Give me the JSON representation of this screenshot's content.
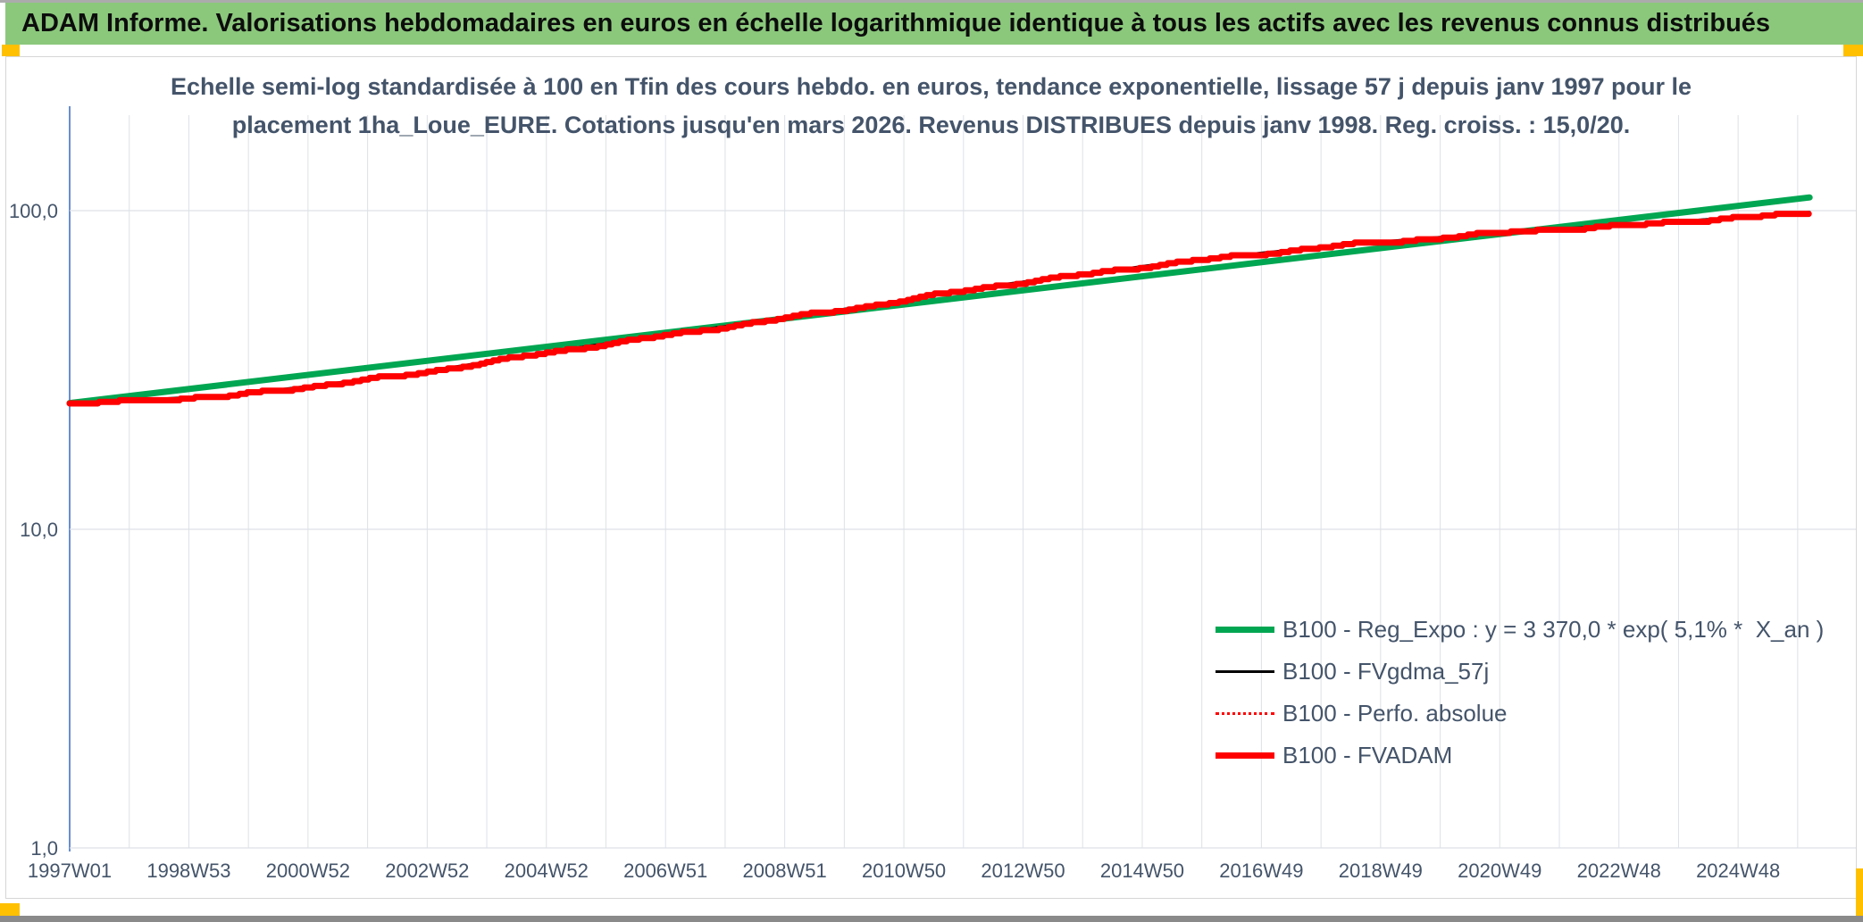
{
  "window": {
    "title": "ADAM Informe. Valorisations hebdomadaires en euros en échelle logarithmique identique à tous les actifs avec les revenus connus distribués"
  },
  "colors": {
    "title_bar_bg": "#8bc87c",
    "title_text": "#0d0d0d",
    "chart_text": "#44546a",
    "gridline": "#dde1e6",
    "axis_line": "#4472c4",
    "trend_green": "#00a651",
    "series_red": "#ff0000",
    "series_black": "#000000",
    "highlight_yellow": "#ffc000"
  },
  "chart_data": {
    "type": "line",
    "title_lines": [
      "Echelle semi-log standardisée à 100 en Tfin des cours hebdo. en euros, tendance exponentielle, lissage 57 j depuis janv 1997 pour le",
      "placement 1ha_Loue_EURE. Cotations jusqu'en mars 2026. Revenus DISTRIBUES depuis janv 1998. Reg. croiss. : 15,0/20."
    ],
    "y_axis": {
      "scale": "log10",
      "ticks": [
        {
          "label": "1,0",
          "value": 1
        },
        {
          "label": "10,0",
          "value": 10
        },
        {
          "label": "100,0",
          "value": 100
        }
      ],
      "range": [
        1,
        200
      ]
    },
    "x_axis": {
      "range_years": [
        1997.0,
        2026.2
      ],
      "gridline_every_years": 1,
      "ticks": [
        {
          "label": "1997W01",
          "year": 1997
        },
        {
          "label": "1998W53",
          "year": 1999
        },
        {
          "label": "2000W52",
          "year": 2001
        },
        {
          "label": "2002W52",
          "year": 2003
        },
        {
          "label": "2004W52",
          "year": 2005
        },
        {
          "label": "2006W51",
          "year": 2007
        },
        {
          "label": "2008W51",
          "year": 2009
        },
        {
          "label": "2010W50",
          "year": 2011
        },
        {
          "label": "2012W50",
          "year": 2013
        },
        {
          "label": "2014W50",
          "year": 2015
        },
        {
          "label": "2016W49",
          "year": 2017
        },
        {
          "label": "2018W49",
          "year": 2019
        },
        {
          "label": "2020W49",
          "year": 2021
        },
        {
          "label": "2022W48",
          "year": 2023
        },
        {
          "label": "2024W48",
          "year": 2025
        }
      ]
    },
    "legend_position": "right-lower",
    "grid": true,
    "series": [
      {
        "name": "B100 - Reg_Expo : y = 3 370,0 * exp( 5,1% *  X_an )",
        "color": "#00a651",
        "style": "solid",
        "width": 7,
        "render": "trend",
        "points": [
          [
            1997.0,
            24.9
          ],
          [
            2026.2,
            110.0
          ]
        ]
      },
      {
        "name": "B100 - FVgdma_57j",
        "color": "#000000",
        "style": "solid",
        "width": 3,
        "render": "smooth",
        "points": [
          [
            1997.0,
            24.8
          ],
          [
            1998.2,
            25.5
          ],
          [
            1999.7,
            26.3
          ],
          [
            2001.2,
            28.4
          ],
          [
            2002.7,
            30.7
          ],
          [
            2004.2,
            34.0
          ],
          [
            2005.7,
            37.6
          ],
          [
            2007.2,
            41.2
          ],
          [
            2008.3,
            44.2
          ],
          [
            2009.3,
            47.0
          ],
          [
            2010.8,
            51.7
          ],
          [
            2012.3,
            57.5
          ],
          [
            2013.8,
            62.5
          ],
          [
            2015.3,
            68.0
          ],
          [
            2016.8,
            73.0
          ],
          [
            2018.3,
            78.0
          ],
          [
            2019.8,
            82.0
          ],
          [
            2021.3,
            86.5
          ],
          [
            2022.8,
            89.3
          ],
          [
            2024.3,
            93.4
          ],
          [
            2025.8,
            97.7
          ],
          [
            2026.2,
            98.9
          ]
        ]
      },
      {
        "name": "B100 - Perfo. absolue",
        "color": "#ff0000",
        "style": "dotted",
        "width": 2,
        "render": "smooth",
        "points": [
          [
            1997.0,
            24.8
          ],
          [
            1998.2,
            25.5
          ],
          [
            1999.7,
            26.3
          ],
          [
            2001.2,
            28.4
          ],
          [
            2002.7,
            30.7
          ],
          [
            2004.2,
            34.0
          ],
          [
            2005.7,
            37.6
          ],
          [
            2007.2,
            41.2
          ],
          [
            2008.3,
            44.2
          ],
          [
            2009.3,
            47.0
          ],
          [
            2010.8,
            51.7
          ],
          [
            2012.3,
            57.5
          ],
          [
            2013.8,
            62.5
          ],
          [
            2015.3,
            68.0
          ],
          [
            2016.8,
            73.0
          ],
          [
            2018.3,
            78.0
          ],
          [
            2019.8,
            82.0
          ],
          [
            2021.3,
            86.5
          ],
          [
            2022.8,
            89.3
          ],
          [
            2024.3,
            93.4
          ],
          [
            2025.8,
            97.7
          ],
          [
            2026.2,
            98.9
          ]
        ]
      },
      {
        "name": "B100 - FVADAM",
        "color": "#ff0000",
        "style": "solid",
        "width": 7,
        "render": "stepped",
        "points": [
          [
            1997.0,
            24.8
          ],
          [
            1998.2,
            25.5
          ],
          [
            1999.7,
            26.3
          ],
          [
            2001.2,
            28.4
          ],
          [
            2002.7,
            30.7
          ],
          [
            2004.2,
            34.0
          ],
          [
            2005.7,
            37.6
          ],
          [
            2007.2,
            41.2
          ],
          [
            2008.3,
            44.2
          ],
          [
            2009.3,
            47.0
          ],
          [
            2010.8,
            51.7
          ],
          [
            2012.3,
            57.5
          ],
          [
            2013.8,
            62.5
          ],
          [
            2015.3,
            68.0
          ],
          [
            2016.8,
            73.0
          ],
          [
            2018.3,
            78.0
          ],
          [
            2019.8,
            82.0
          ],
          [
            2021.3,
            86.5
          ],
          [
            2022.8,
            89.3
          ],
          [
            2024.3,
            93.4
          ],
          [
            2025.8,
            97.7
          ],
          [
            2026.2,
            98.9
          ]
        ]
      }
    ]
  }
}
